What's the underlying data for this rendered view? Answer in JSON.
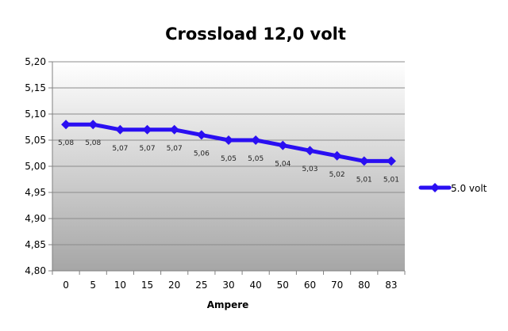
{
  "chart_data": {
    "type": "line",
    "title": "Crossload 12,0 volt",
    "xlabel": "Ampere",
    "ylabel": "",
    "categories": [
      "0",
      "5",
      "10",
      "15",
      "20",
      "25",
      "30",
      "40",
      "50",
      "60",
      "70",
      "80",
      "83"
    ],
    "series": [
      {
        "name": "5.0 volt",
        "values": [
          5.08,
          5.08,
          5.07,
          5.07,
          5.07,
          5.06,
          5.05,
          5.05,
          5.04,
          5.03,
          5.02,
          5.01,
          5.01
        ],
        "data_labels": [
          "5,08",
          "5,08",
          "5,07",
          "5,07",
          "5,07",
          "5,06",
          "5,05",
          "5,05",
          "5,04",
          "5,03",
          "5,02",
          "5,01",
          "5,01"
        ],
        "color": "#2a0ff2"
      }
    ],
    "ylim": [
      4.8,
      5.2
    ],
    "yticks": [
      5.2,
      5.15,
      5.1,
      5.05,
      5.0,
      4.95,
      4.9,
      4.85,
      4.8
    ],
    "ytick_labels": [
      "5,20",
      "5,15",
      "5,10",
      "5,05",
      "5,00",
      "4,95",
      "4,90",
      "4,85",
      "4,80"
    ],
    "grid": true,
    "legend_position": "right",
    "plot_background": "gradient-gray"
  }
}
